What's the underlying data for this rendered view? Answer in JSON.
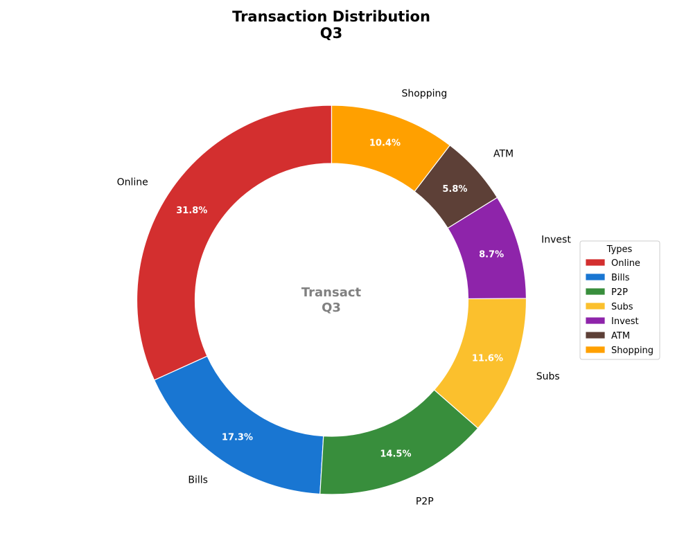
{
  "chart_data": {
    "type": "pie",
    "donut": true,
    "title_line1": "Transaction Distribution",
    "title_line2": "Q3",
    "center_line1": "Transact",
    "center_line2": "Q3",
    "legend_title": "Types",
    "legend_position": "right",
    "start_angle_deg": 90,
    "direction": "counterclockwise",
    "slices": [
      {
        "label": "Online",
        "value": 31.8,
        "pct_label": "31.8%",
        "color": "#d32f2f"
      },
      {
        "label": "Bills",
        "value": 17.3,
        "pct_label": "17.3%",
        "color": "#1976d2"
      },
      {
        "label": "P2P",
        "value": 14.5,
        "pct_label": "14.5%",
        "color": "#388e3c"
      },
      {
        "label": "Subs",
        "value": 11.6,
        "pct_label": "11.6%",
        "color": "#fbc02d"
      },
      {
        "label": "Invest",
        "value": 8.7,
        "pct_label": "8.7%",
        "color": "#8e24aa"
      },
      {
        "label": "ATM",
        "value": 5.8,
        "pct_label": "5.8%",
        "color": "#5d4037"
      },
      {
        "label": "Shopping",
        "value": 10.4,
        "pct_label": "10.4%",
        "color": "#ffa000"
      }
    ]
  }
}
